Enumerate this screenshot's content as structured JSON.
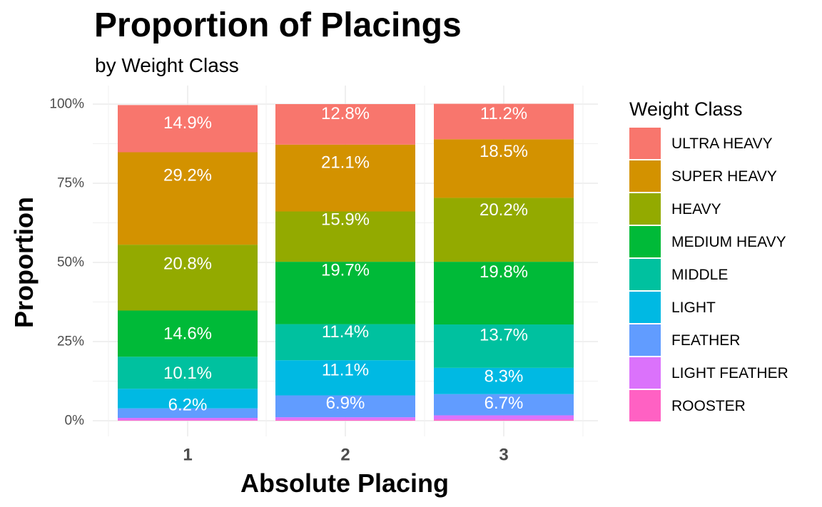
{
  "chart_data": {
    "type": "bar",
    "stacked": true,
    "normalized": true,
    "title": "Proportion of Placings",
    "subtitle": "by Weight Class",
    "xlabel": "Absolute Placing",
    "ylabel": "Proportion",
    "categories": [
      "1",
      "2",
      "3"
    ],
    "ylim": [
      0,
      1
    ],
    "yticks": [
      0,
      0.25,
      0.5,
      0.75,
      1.0
    ],
    "ytick_labels": [
      "0%",
      "25%",
      "50%",
      "75%",
      "100%"
    ],
    "grid": true,
    "legend": {
      "title": "Weight Class",
      "position": "right"
    },
    "series": [
      {
        "name": "ROOSTER",
        "color": "#FF61C3",
        "values": [
          0.002,
          0.003,
          0.004
        ]
      },
      {
        "name": "LIGHT FEATHER",
        "color": "#DB72FB",
        "values": [
          0.007,
          0.008,
          0.013
        ]
      },
      {
        "name": "FEATHER",
        "color": "#619CFF",
        "values": [
          0.03,
          0.069,
          0.067
        ]
      },
      {
        "name": "LIGHT",
        "color": "#00B9E3",
        "values": [
          0.062,
          0.111,
          0.083
        ]
      },
      {
        "name": "MIDDLE",
        "color": "#00C19F",
        "values": [
          0.101,
          0.114,
          0.137
        ]
      },
      {
        "name": "MEDIUM HEAVY",
        "color": "#00BA38",
        "values": [
          0.146,
          0.197,
          0.198
        ]
      },
      {
        "name": "HEAVY",
        "color": "#93AA00",
        "values": [
          0.208,
          0.159,
          0.202
        ]
      },
      {
        "name": "SUPER HEAVY",
        "color": "#D39200",
        "values": [
          0.292,
          0.211,
          0.185
        ]
      },
      {
        "name": "ULTRA HEAVY",
        "color": "#F8766D",
        "values": [
          0.149,
          0.128,
          0.112
        ]
      }
    ],
    "labels": [
      {
        "series": "FEATHER",
        "category": "1",
        "text": "",
        "y": 0.035
      },
      {
        "series": "LIGHT",
        "category": "1",
        "text": "6.2%",
        "y": 0.05
      },
      {
        "series": "MIDDLE",
        "category": "1",
        "text": "10.1%",
        "y": 0.15
      },
      {
        "series": "MEDIUM HEAVY",
        "category": "1",
        "text": "14.6%",
        "y": 0.275
      },
      {
        "series": "HEAVY",
        "category": "1",
        "text": "20.8%",
        "y": 0.495
      },
      {
        "series": "SUPER HEAVY",
        "category": "1",
        "text": "29.2%",
        "y": 0.775
      },
      {
        "series": "ULTRA HEAVY",
        "category": "1",
        "text": "14.9%",
        "y": 0.94
      },
      {
        "series": "FEATHER",
        "category": "2",
        "text": "6.9%",
        "y": 0.055
      },
      {
        "series": "LIGHT",
        "category": "2",
        "text": "11.1%",
        "y": 0.16
      },
      {
        "series": "MIDDLE",
        "category": "2",
        "text": "11.4%",
        "y": 0.28
      },
      {
        "series": "MEDIUM HEAVY",
        "category": "2",
        "text": "19.7%",
        "y": 0.475
      },
      {
        "series": "HEAVY",
        "category": "2",
        "text": "15.9%",
        "y": 0.635
      },
      {
        "series": "SUPER HEAVY",
        "category": "2",
        "text": "21.1%",
        "y": 0.815
      },
      {
        "series": "ULTRA HEAVY",
        "category": "2",
        "text": "12.8%",
        "y": 0.97
      },
      {
        "series": "FEATHER",
        "category": "3",
        "text": "6.7%",
        "y": 0.055
      },
      {
        "series": "LIGHT",
        "category": "3",
        "text": "8.3%",
        "y": 0.14
      },
      {
        "series": "MIDDLE",
        "category": "3",
        "text": "13.7%",
        "y": 0.27
      },
      {
        "series": "MEDIUM HEAVY",
        "category": "3",
        "text": "19.8%",
        "y": 0.47
      },
      {
        "series": "HEAVY",
        "category": "3",
        "text": "20.2%",
        "y": 0.665
      },
      {
        "series": "SUPER HEAVY",
        "category": "3",
        "text": "18.5%",
        "y": 0.85
      },
      {
        "series": "ULTRA HEAVY",
        "category": "3",
        "text": "11.2%",
        "y": 0.97
      }
    ]
  },
  "legend_items": [
    {
      "label": "ULTRA HEAVY",
      "color": "#F8766D"
    },
    {
      "label": "SUPER HEAVY",
      "color": "#D39200"
    },
    {
      "label": "HEAVY",
      "color": "#93AA00"
    },
    {
      "label": "MEDIUM HEAVY",
      "color": "#00BA38"
    },
    {
      "label": "MIDDLE",
      "color": "#00C19F"
    },
    {
      "label": "LIGHT",
      "color": "#00B9E3"
    },
    {
      "label": "FEATHER",
      "color": "#619CFF"
    },
    {
      "label": "LIGHT FEATHER",
      "color": "#DB72FB"
    },
    {
      "label": "ROOSTER",
      "color": "#FF61C3"
    }
  ]
}
